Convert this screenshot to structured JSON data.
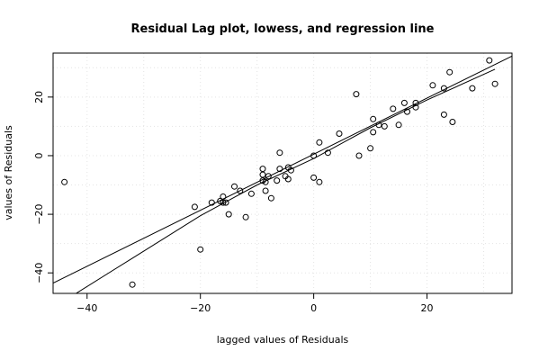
{
  "chart_data": {
    "type": "scatter",
    "title": "Residual Lag plot, lowess, and regression line",
    "xlabel": "lagged values of Residuals",
    "ylabel": "values of Residuals",
    "xlim": [
      -46,
      35
    ],
    "ylim": [
      -47,
      35
    ],
    "x_ticks": [
      -40,
      -20,
      0,
      20
    ],
    "y_ticks": [
      -40,
      -20,
      0,
      20
    ],
    "grid": true,
    "points": [
      [
        -44,
        -9
      ],
      [
        -32,
        -44
      ],
      [
        -21,
        -17.5
      ],
      [
        -20,
        -32
      ],
      [
        -18,
        -16
      ],
      [
        -16.5,
        -15.5
      ],
      [
        -16,
        -16
      ],
      [
        -16,
        -14
      ],
      [
        -15.5,
        -16
      ],
      [
        -15,
        -20
      ],
      [
        -14,
        -10.5
      ],
      [
        -13,
        -12
      ],
      [
        -12,
        -21
      ],
      [
        -11,
        -13
      ],
      [
        -9,
        -4.5
      ],
      [
        -9,
        -6.5
      ],
      [
        -9,
        -8.5
      ],
      [
        -8.5,
        -9
      ],
      [
        -8,
        -7
      ],
      [
        -8.5,
        -12
      ],
      [
        -7.5,
        -14.5
      ],
      [
        -6.5,
        -8.5
      ],
      [
        -6,
        1
      ],
      [
        -6,
        -4.5
      ],
      [
        -5,
        -7
      ],
      [
        -4.5,
        -8
      ],
      [
        -4.5,
        -4
      ],
      [
        -4,
        -5
      ],
      [
        0,
        0
      ],
      [
        0,
        -7.5
      ],
      [
        1,
        4.5
      ],
      [
        1,
        -9
      ],
      [
        2.5,
        1
      ],
      [
        4.5,
        7.5
      ],
      [
        7.5,
        21
      ],
      [
        8,
        0
      ],
      [
        10,
        2.5
      ],
      [
        10.5,
        12.5
      ],
      [
        10.5,
        8
      ],
      [
        11.5,
        10.5
      ],
      [
        12.5,
        10
      ],
      [
        14,
        16
      ],
      [
        15,
        10.5
      ],
      [
        16,
        18
      ],
      [
        16.5,
        15
      ],
      [
        18,
        16.5
      ],
      [
        18,
        18
      ],
      [
        21,
        24
      ],
      [
        23,
        23
      ],
      [
        23,
        14
      ],
      [
        24,
        28.5
      ],
      [
        24.5,
        11.5
      ],
      [
        28,
        23
      ],
      [
        31,
        32.5
      ],
      [
        32,
        24.5
      ]
    ],
    "regression_line": [
      [
        -46,
        -43.5
      ],
      [
        35,
        34
      ]
    ],
    "lowess_line": [
      [
        -44,
        -49.5
      ],
      [
        -32,
        -35
      ],
      [
        -20,
        -20.5
      ],
      [
        -10,
        -10
      ],
      [
        0,
        -1
      ],
      [
        10,
        9.5
      ],
      [
        20,
        19
      ],
      [
        32,
        29.5
      ]
    ]
  }
}
